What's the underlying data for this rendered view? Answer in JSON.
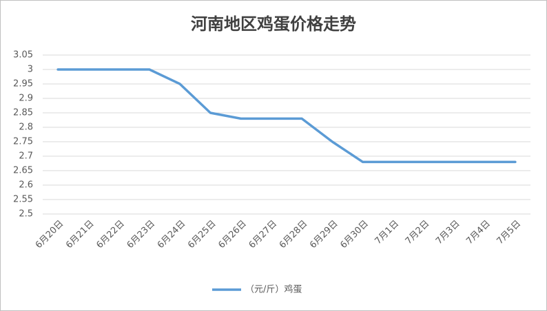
{
  "chart_data": {
    "type": "line",
    "title": "河南地区鸡蛋价格走势",
    "categories": [
      "6月20日",
      "6月21日",
      "6月22日",
      "6月23日",
      "6月24日",
      "6月25日",
      "6月26日",
      "6月27日",
      "6月28日",
      "6月29日",
      "6月30日",
      "7月1日",
      "7月2日",
      "7月3日",
      "7月4日",
      "7月5日"
    ],
    "series": [
      {
        "name": "（元/斤）鸡蛋",
        "color": "#5b9bd5",
        "values": [
          3,
          3,
          3,
          3,
          2.95,
          2.85,
          2.83,
          2.83,
          2.83,
          2.75,
          2.68,
          2.68,
          2.68,
          2.68,
          2.68,
          2.68
        ]
      }
    ],
    "ylim": [
      2.5,
      3.05
    ],
    "yticks": [
      2.5,
      2.55,
      2.6,
      2.65,
      2.7,
      2.75,
      2.8,
      2.85,
      2.9,
      2.95,
      3,
      3.05
    ],
    "grid": true,
    "legend": "bottom"
  }
}
